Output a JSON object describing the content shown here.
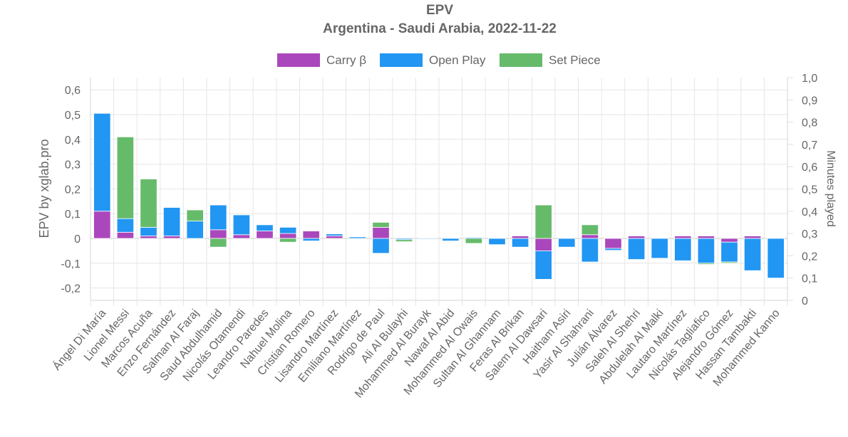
{
  "chart_data": {
    "type": "bar",
    "title": "EPV",
    "subtitle": "Argentina - Saudi Arabia, 2022-11-22",
    "ylabel": "EPV  by xglab.pro",
    "y2label": "Minutes played",
    "stacked": true,
    "legend_position": "top",
    "grid": true,
    "ylim": [
      -0.27,
      0.65
    ],
    "yticks": [
      -0.2,
      -0.1,
      0,
      0.1,
      0.2,
      0.3,
      0.4,
      0.5,
      0.6
    ],
    "ytick_labels": [
      "-0,2",
      "-0,1",
      "0",
      "0,1",
      "0,2",
      "0,3",
      "0,4",
      "0,5",
      "0,6"
    ],
    "y2ticks": [
      0,
      0.1,
      0.2,
      0.3,
      0.4,
      0.5,
      0.6,
      0.7,
      0.8,
      0.9,
      1.0
    ],
    "y2tick_labels": [
      "0",
      "0,1",
      "0,2",
      "0,3",
      "0,4",
      "0,5",
      "0,6",
      "0,7",
      "0,8",
      "0,9",
      "1,0"
    ],
    "categories": [
      "Ángel Di María",
      "Lionel Messi",
      "Marcos Acuña",
      "Enzo Fernández",
      "Salman Al Faraj",
      "Saud Abdulhamid",
      "Nicolás Otamendi",
      "Leandro Paredes",
      "Nahuel Molina",
      "Cristian Romero",
      "Lisandro Martínez",
      "Emiliano Martínez",
      "Rodrigo de Paul",
      "Ali Al Bulayhi",
      "Mohammed Al Burayk",
      "Nawaf Al Abid",
      "Mohammed Al Owais",
      "Sultan Al Ghannam",
      "Feras Al Brikan",
      "Salem Al Dawsari",
      "Haitham Asiri",
      "Yasir Al Shahrani",
      "Julián Álvarez",
      "Saleh Al Shehri",
      "Abdulelah Al Malki",
      "Lautaro Martínez",
      "Nicolás Tagliafico",
      "Alejandro Gómez",
      "Hassan Tambakti",
      "Mohammed Kanno"
    ],
    "series": [
      {
        "name": "Carry β",
        "color": "#ab47bc",
        "values": [
          0.11,
          0.025,
          0.01,
          0.01,
          0.0,
          0.035,
          0.015,
          0.03,
          0.02,
          0.03,
          0.01,
          0.0,
          0.045,
          0.0,
          0.0,
          0.0,
          0.0,
          0.0,
          0.01,
          -0.05,
          0.0,
          0.015,
          -0.04,
          0.01,
          0.0,
          0.01,
          0.01,
          -0.015,
          0.01,
          0.0
        ]
      },
      {
        "name": "Open Play",
        "color": "#2196f3",
        "values": [
          0.395,
          0.055,
          0.035,
          0.115,
          0.07,
          0.1,
          0.08,
          0.025,
          0.025,
          -0.01,
          0.008,
          0.006,
          -0.06,
          -0.005,
          -0.003,
          -0.01,
          0.004,
          -0.025,
          -0.035,
          -0.115,
          -0.035,
          -0.095,
          -0.008,
          -0.085,
          -0.08,
          -0.09,
          -0.1,
          -0.08,
          -0.13,
          -0.16
        ]
      },
      {
        "name": "Set Piece",
        "color": "#66bb6a",
        "values": [
          0.0,
          0.33,
          0.195,
          0.0,
          0.045,
          -0.035,
          0.0,
          0.0,
          -0.015,
          0.0,
          0.0,
          0.0,
          0.02,
          -0.008,
          0.0,
          0.0,
          -0.02,
          0.0,
          0.0,
          0.135,
          0.0,
          0.04,
          0.0,
          0.0,
          0.0,
          0.0,
          -0.005,
          -0.005,
          0.0,
          0.0
        ]
      }
    ]
  }
}
